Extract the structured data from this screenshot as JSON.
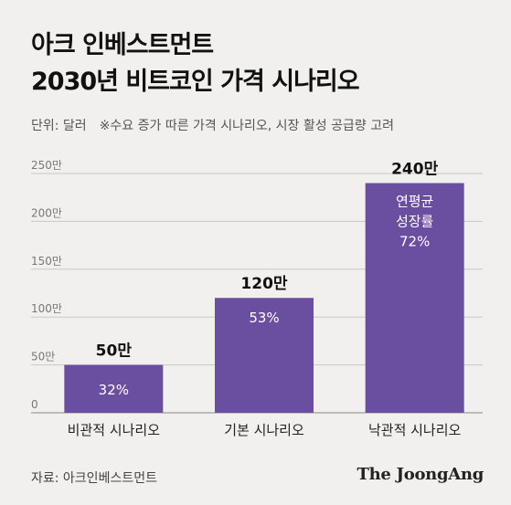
{
  "header": {
    "title_line1": "아크 인베스트먼트",
    "title_line2": "2030년 비트코인 가격 시나리오",
    "unit": "단위: 달러",
    "note": "※수요 증가 따른 가격 시나리오, 시장 활성 공급량 고려"
  },
  "chart_data": {
    "type": "bar",
    "categories": [
      "비관적 시나리오",
      "기본 시나리오",
      "낙관적 시나리오"
    ],
    "values": [
      50,
      120,
      240
    ],
    "value_labels": [
      "50만",
      "120만",
      "240만"
    ],
    "inner_labels": [
      [
        "32%"
      ],
      [
        "53%"
      ],
      [
        "연평균",
        "성장률",
        "72%"
      ]
    ],
    "yticks": [
      0,
      50,
      100,
      150,
      200,
      250
    ],
    "ytick_labels": [
      "0",
      "50만",
      "100만",
      "150만",
      "200만",
      "250만"
    ],
    "ylim": [
      0,
      250
    ],
    "grid": true,
    "bar_color": "#6a4ea0"
  },
  "footer": {
    "source": "자료: 아크인베스트먼트",
    "brand": "The JoongAng"
  }
}
